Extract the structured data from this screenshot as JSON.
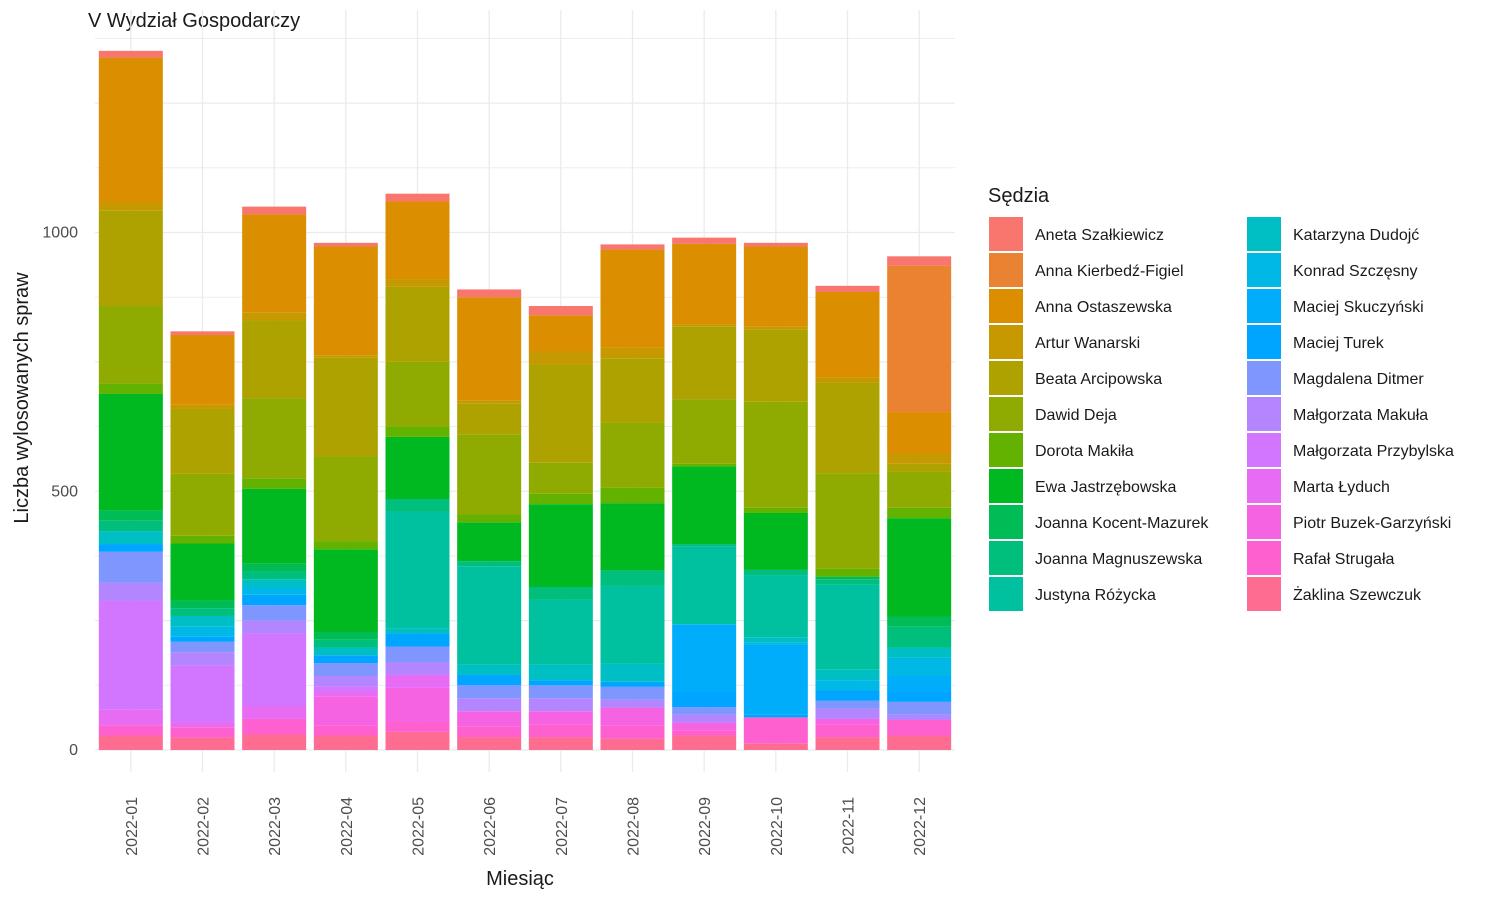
{
  "chart_data": {
    "type": "bar",
    "stacked": true,
    "title": "V Wydział Gospodarczy",
    "xlabel": "Miesiąc",
    "ylabel": "Liczba wylosowanych spraw",
    "ylim": [
      0,
      1400
    ],
    "yticks": [
      0,
      500,
      1000
    ],
    "grid": true,
    "legend_title": "Sędzia",
    "legend_position": "right",
    "categories": [
      "2022-01",
      "2022-02",
      "2022-03",
      "2022-04",
      "2022-05",
      "2022-06",
      "2022-07",
      "2022-08",
      "2022-09",
      "2022-10",
      "2022-11",
      "2022-12"
    ],
    "series": [
      {
        "name": "Aneta Szałkiewicz",
        "color": "#F8766D",
        "values": [
          13,
          7,
          15,
          7,
          15,
          15,
          18,
          10,
          12,
          7,
          12,
          18
        ]
      },
      {
        "name": "Anna Kierbedź-Figiel",
        "color": "#EA8331",
        "values": [
          0,
          0,
          0,
          0,
          0,
          0,
          0,
          0,
          0,
          0,
          0,
          283
        ]
      },
      {
        "name": "Anna Ostaszewska",
        "color": "#DB8E00",
        "values": [
          280,
          135,
          190,
          210,
          150,
          200,
          70,
          190,
          155,
          155,
          165,
          80
        ]
      },
      {
        "name": "Artur Wanarski",
        "color": "#C69900",
        "values": [
          15,
          8,
          15,
          5,
          15,
          5,
          25,
          20,
          5,
          5,
          10,
          20
        ]
      },
      {
        "name": "Beata Arcipowska",
        "color": "#AEA200",
        "values": [
          185,
          125,
          150,
          190,
          145,
          60,
          190,
          125,
          140,
          140,
          175,
          15
        ]
      },
      {
        "name": "Dawid Deja",
        "color": "#8FAA00",
        "values": [
          150,
          120,
          155,
          165,
          125,
          155,
          60,
          125,
          125,
          205,
          185,
          70
        ]
      },
      {
        "name": "Dorota Makiła",
        "color": "#64B200",
        "values": [
          20,
          15,
          20,
          15,
          20,
          15,
          20,
          30,
          5,
          10,
          15,
          20
        ]
      },
      {
        "name": "Ewa Jastrzębowska",
        "color": "#00B81F",
        "values": [
          225,
          110,
          145,
          160,
          120,
          75,
          160,
          130,
          150,
          110,
          0,
          190
        ]
      },
      {
        "name": "Joanna Kocent-Mazurek",
        "color": "#00BC56",
        "values": [
          20,
          15,
          15,
          15,
          0,
          0,
          0,
          0,
          0,
          0,
          5,
          20
        ]
      },
      {
        "name": "Joanna Magnuszewska",
        "color": "#00BF7D",
        "values": [
          20,
          15,
          15,
          15,
          25,
          10,
          25,
          30,
          5,
          10,
          10,
          40
        ]
      },
      {
        "name": "Justyna Różycka",
        "color": "#00C19F",
        "values": [
          0,
          0,
          0,
          0,
          225,
          190,
          125,
          150,
          150,
          120,
          165,
          0
        ]
      },
      {
        "name": "Katarzyna Dudojć",
        "color": "#00BFC4",
        "values": [
          25,
          20,
          15,
          15,
          10,
          20,
          30,
          35,
          0,
          10,
          20,
          20
        ]
      },
      {
        "name": "Konrad Szczęsny",
        "color": "#00B8E5",
        "values": [
          0,
          20,
          15,
          0,
          0,
          0,
          0,
          0,
          0,
          5,
          20,
          35
        ]
      },
      {
        "name": "Maciej Skuczyński",
        "color": "#00ADFA",
        "values": [
          0,
          0,
          0,
          0,
          0,
          0,
          0,
          0,
          130,
          135,
          0,
          30
        ]
      },
      {
        "name": "Maciej Turek",
        "color": "#00A5FF",
        "values": [
          15,
          10,
          20,
          15,
          25,
          20,
          10,
          10,
          30,
          5,
          20,
          20
        ]
      },
      {
        "name": "Magdalena Ditmer",
        "color": "#7F96FF",
        "values": [
          60,
          20,
          30,
          25,
          30,
          25,
          25,
          25,
          15,
          0,
          15,
          25
        ]
      },
      {
        "name": "Małgorzata Makuła",
        "color": "#B385FF",
        "values": [
          35,
          25,
          25,
          20,
          25,
          25,
          25,
          15,
          15,
          0,
          20,
          10
        ]
      },
      {
        "name": "Małgorzata Przybylska",
        "color": "#D376FF",
        "values": [
          210,
          110,
          140,
          10,
          0,
          0,
          0,
          0,
          0,
          0,
          0,
          0
        ]
      },
      {
        "name": "Marta Łyduch",
        "color": "#E76BF3",
        "values": [
          30,
          10,
          25,
          10,
          25,
          0,
          0,
          0,
          0,
          0,
          0,
          0
        ]
      },
      {
        "name": "Piotr Buzek-Garzyński",
        "color": "#F563E3",
        "values": [
          0,
          0,
          0,
          55,
          65,
          30,
          25,
          35,
          15,
          0,
          10,
          0
        ]
      },
      {
        "name": "Rafał Strugała",
        "color": "#FE61CF",
        "values": [
          20,
          20,
          30,
          20,
          20,
          20,
          25,
          25,
          10,
          50,
          25,
          30
        ]
      },
      {
        "name": "Żaklina Szewczuk",
        "color": "#FF6C91",
        "values": [
          28,
          24,
          30,
          28,
          35,
          25,
          25,
          22,
          28,
          13,
          25,
          28
        ]
      }
    ]
  }
}
